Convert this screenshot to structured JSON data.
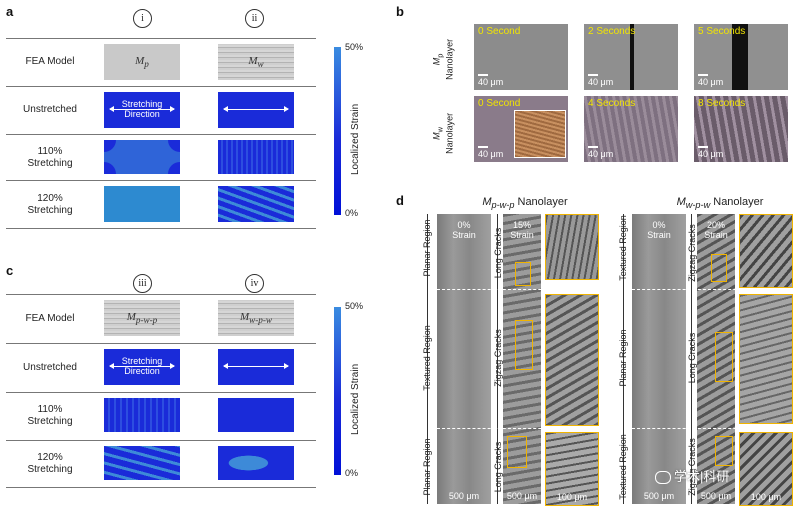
{
  "labels": {
    "a": "a",
    "b": "b",
    "c": "c",
    "d": "d"
  },
  "panel_a": {
    "col_headers": [
      "i",
      "ii"
    ],
    "rows": [
      "FEA Model",
      "Unstretched",
      "110%\nStretching",
      "120%\nStretching"
    ],
    "models": [
      "M",
      "M"
    ],
    "model_subs": [
      "p",
      "w"
    ],
    "stretching_direction": "Stretching\nDirection",
    "colorbar": {
      "top": "50%",
      "bottom": "0%",
      "title": "Localized Strain"
    }
  },
  "panel_c": {
    "col_headers": [
      "iii",
      "iv"
    ],
    "rows": [
      "FEA Model",
      "Unstretched",
      "110%\nStretching",
      "120%\nStretching"
    ],
    "models": [
      "M",
      "M"
    ],
    "model_subs": [
      "p-w-p",
      "w-p-w"
    ],
    "stretching_direction": "Stretching\nDirection",
    "colorbar": {
      "top": "50%",
      "bottom": "0%",
      "title": "Localized Strain"
    }
  },
  "panel_b": {
    "row_labels": [
      {
        "m": "M",
        "sub": "p",
        "rest": "Nanolayer"
      },
      {
        "m": "M",
        "sub": "w",
        "rest": "Nanolayer"
      }
    ],
    "times": [
      [
        "0 Second",
        "2 Seconds",
        "5 Seconds"
      ],
      [
        "0 Second",
        "4 Seconds",
        "8 Seconds"
      ]
    ],
    "scale": "40 μm"
  },
  "panel_d": {
    "left_title": {
      "m": "M",
      "sub": "p-w-p",
      "rest": " Nanolayer"
    },
    "right_title": {
      "m": "M",
      "sub": "w-p-w",
      "rest": " Nanolayer"
    },
    "strain_left_0": "0%\nStrain",
    "strain_left_15": "15%\nStrain",
    "strain_right_0": "0%\nStrain",
    "strain_right_20": "20%\nStrain",
    "regions_left": [
      "Planar Region",
      "Textured Region",
      "Planar Region"
    ],
    "cracks_left": [
      "Long Cracks",
      "Zigzag Cracks",
      "Long Cracks"
    ],
    "regions_right": [
      "Textured Region",
      "Planar Region",
      "Textured Region"
    ],
    "cracks_right": [
      "Zigzag Cracks",
      "Long Cracks",
      "Zigzag Cracks"
    ],
    "scale_500": "500 μm",
    "scale_100": "100 μm"
  },
  "watermark": "学术|科研"
}
